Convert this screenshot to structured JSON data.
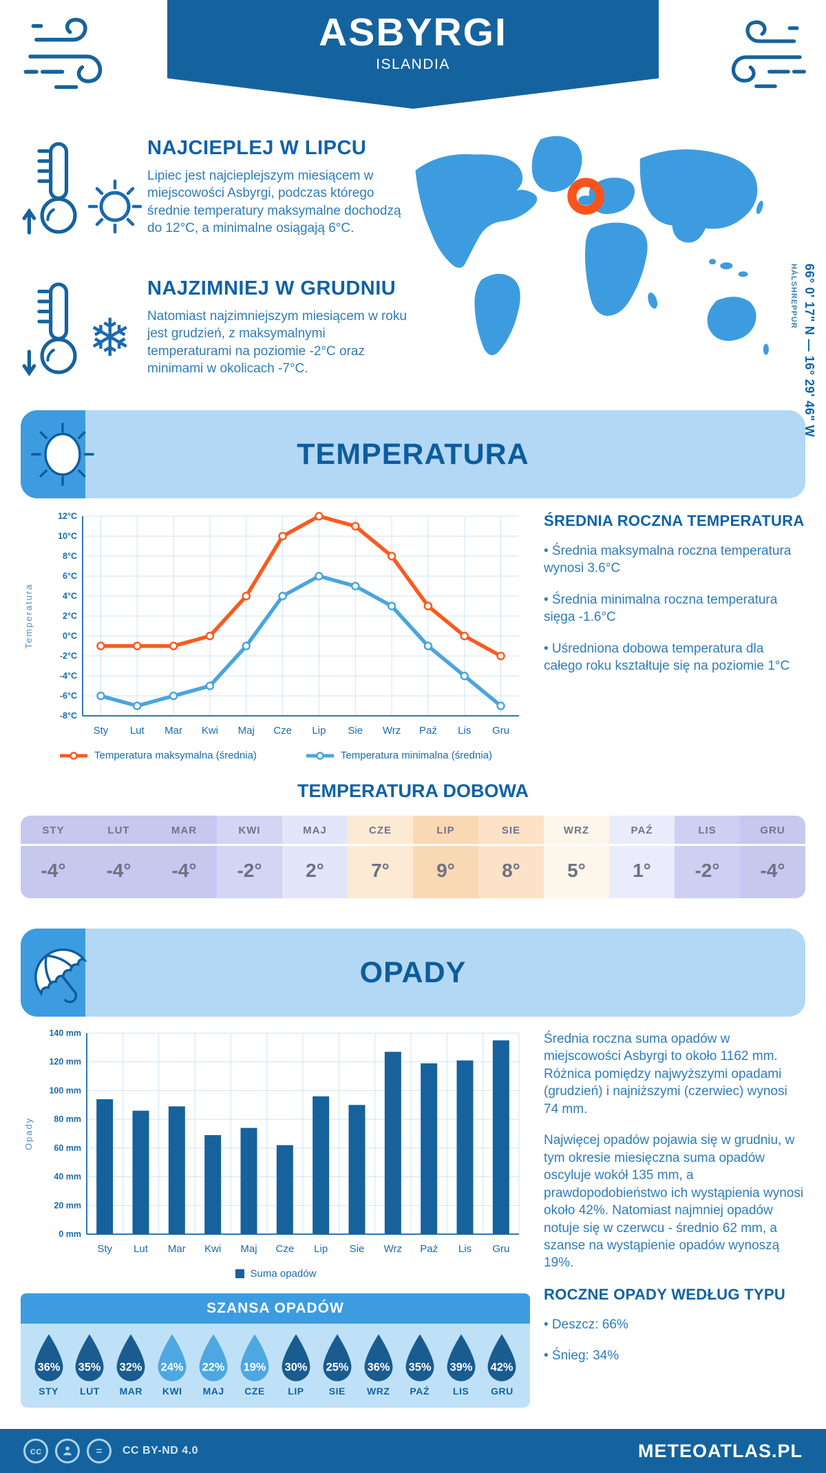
{
  "header": {
    "title": "ASBYRGI",
    "subtitle": "ISLANDIA"
  },
  "intro": {
    "warm": {
      "heading": "NAJCIEPLEJ W LIPCU",
      "text": "Lipiec jest najcieplejszym miesiącem w miejscowości Asbyrgi, podczas którego średnie temperatury maksymalne dochodzą do 12°C, a minimalne osiągają 6°C."
    },
    "cold": {
      "heading": "NAJZIMNIEJ W GRUDNIU",
      "text": "Natomiast najzimniejszym miesiącem w roku jest grudzień, z maksymalnymi temperaturami na poziomie -2°C oraz minimami w okolicach -7°C."
    },
    "map": {
      "coordinates": "66° 0' 17\" N — 16° 29' 46\" W",
      "region": "HÁLSHREPPUR"
    }
  },
  "temperature": {
    "banner": "TEMPERATURA",
    "annual_heading": "ŚREDNIA ROCZNA TEMPERATURA",
    "annual_bullets": [
      "• Średnia maksymalna roczna temperatura wynosi 3.6°C",
      "• Średnia minimalna roczna temperatura sięga -1.6°C",
      "• Uśredniona dobowa temperatura dla całego roku kształtuje się na poziomie 1°C"
    ],
    "daily_heading": "TEMPERATURA DOBOWA",
    "daily_months": [
      "STY",
      "LUT",
      "MAR",
      "KWI",
      "MAJ",
      "CZE",
      "LIP",
      "SIE",
      "WRZ",
      "PAŹ",
      "LIS",
      "GRU"
    ],
    "daily_values": [
      "-4°",
      "-4°",
      "-4°",
      "-2°",
      "2°",
      "7°",
      "9°",
      "8°",
      "5°",
      "1°",
      "-2°",
      "-4°"
    ],
    "daily_colors": [
      "#c6c8f0",
      "#c6c8f0",
      "#c6c8f0",
      "#d3d5f5",
      "#e3e5fa",
      "#fdead4",
      "#fad8b4",
      "#fce2c6",
      "#fdf6ea",
      "#eaecfb",
      "#ced0f2",
      "#c6c8f0"
    ]
  },
  "precipitation": {
    "banner": "OPADY",
    "paragraphs": [
      "Średnia roczna suma opadów w miejscowości Asbyrgi to około 1162 mm. Różnica pomiędzy najwyższymi opadami (grudzień) i najniższymi (czerwiec) wynosi 74 mm.",
      "Najwięcej opadów pojawia się w grudniu, w tym okresie miesięczna suma opadów oscyluje wokół 135 mm, a prawdopodobieństwo ich wystąpienia wynosi około 42%. Natomiast najmniej opadów notuje się w czerwcu - średnio 62 mm, a szanse na wystąpienie opadów wynoszą 19%."
    ],
    "type_heading": "ROCZNE OPADY WEDŁUG TYPU",
    "type_bullets": [
      "• Deszcz: 66%",
      "• Śnieg: 34%"
    ],
    "chance": {
      "heading": "SZANSA OPADÓW",
      "months": [
        "STY",
        "LUT",
        "MAR",
        "KWI",
        "MAJ",
        "CZE",
        "LIP",
        "SIE",
        "WRZ",
        "PAŹ",
        "LIS",
        "GRU"
      ],
      "values": [
        "36%",
        "35%",
        "32%",
        "24%",
        "22%",
        "19%",
        "30%",
        "25%",
        "36%",
        "35%",
        "39%",
        "42%"
      ],
      "light_months": [
        "KWI",
        "MAJ",
        "CZE"
      ]
    }
  },
  "footer": {
    "license": "CC BY-ND 4.0",
    "brand": "METEOATLAS.PL"
  },
  "colors": {
    "primary": "#15639e",
    "heading": "#0f62a6",
    "body_text": "#2e7cb9",
    "panel_light": "#b2d8f5",
    "accent_blue": "#3d9ce0",
    "chance_panel": "#bfe1f8",
    "drop_dark": "#1a5c90",
    "drop_light": "#4da7e0",
    "grid": "#cfe3f5",
    "axis": "#2f77b2",
    "tick": "#1a6aad",
    "table_text": "#6d7183",
    "marker_orange": "#fa541c"
  },
  "chart_data": [
    {
      "type": "line",
      "title": "",
      "ylabel": "Temperatura",
      "categories": [
        "Sty",
        "Lut",
        "Mar",
        "Kwi",
        "Maj",
        "Cze",
        "Lip",
        "Sie",
        "Wrz",
        "Paź",
        "Lis",
        "Gru"
      ],
      "series": [
        {
          "name": "Temperatura maksymalna (średnia)",
          "color": "#f95b20",
          "values": [
            -1,
            -1,
            -1,
            0,
            4,
            10,
            12,
            11,
            8,
            3,
            0,
            -2
          ]
        },
        {
          "name": "Temperatura minimalna (średnia)",
          "color": "#4aa5de",
          "values": [
            -6,
            -7,
            -6,
            -5,
            -1,
            4,
            6,
            5,
            3,
            -1,
            -4,
            -7
          ]
        }
      ],
      "ylim": [
        -8,
        12
      ],
      "ytick_step": 2,
      "ytick_suffix": "°C",
      "grid": true,
      "legend_position": "bottom"
    },
    {
      "type": "bar",
      "title": "",
      "ylabel": "Opady",
      "categories": [
        "Sty",
        "Lut",
        "Mar",
        "Kwi",
        "Maj",
        "Cze",
        "Lip",
        "Sie",
        "Wrz",
        "Paź",
        "Lis",
        "Gru"
      ],
      "series": [
        {
          "name": "Suma opadów",
          "color": "#16629c",
          "values": [
            94,
            86,
            89,
            69,
            74,
            62,
            96,
            90,
            127,
            119,
            121,
            135
          ]
        }
      ],
      "ylim": [
        0,
        140
      ],
      "ytick_step": 20,
      "ytick_suffix": " mm",
      "grid": true,
      "legend_position": "bottom"
    }
  ]
}
